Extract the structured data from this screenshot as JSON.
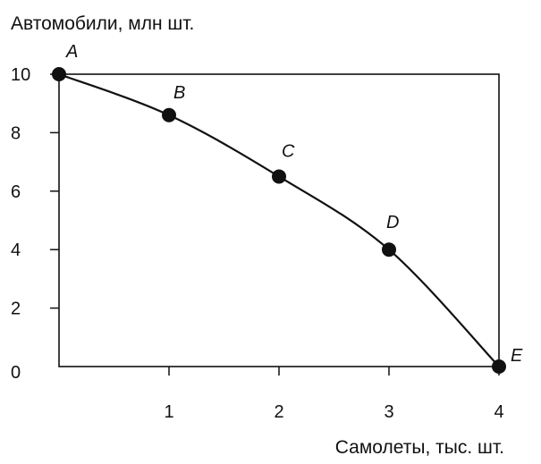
{
  "chart_data": {
    "type": "line",
    "title": "",
    "xlabel": "Самолеты, тыс. шт.",
    "ylabel": "Автомобили, млн шт.",
    "x": [
      0,
      1,
      2,
      3,
      4
    ],
    "xticks": [
      1,
      2,
      3,
      4
    ],
    "xtick_labels": [
      "1",
      "2",
      "3",
      "4"
    ],
    "yticks": [
      0,
      2,
      4,
      6,
      8,
      10
    ],
    "ytick_labels": [
      "0",
      "2",
      "4",
      "6",
      "8",
      "10"
    ],
    "xlim": [
      0,
      4
    ],
    "ylim": [
      0,
      10
    ],
    "grid": false,
    "series": [
      {
        "points": [
          {
            "label": "A",
            "x": 0,
            "y": 10
          },
          {
            "label": "B",
            "x": 1,
            "y": 8.6
          },
          {
            "label": "C",
            "x": 2,
            "y": 6.5
          },
          {
            "label": "D",
            "x": 3,
            "y": 4
          },
          {
            "label": "E",
            "x": 4,
            "y": 0
          }
        ],
        "color": "#111111"
      }
    ]
  }
}
